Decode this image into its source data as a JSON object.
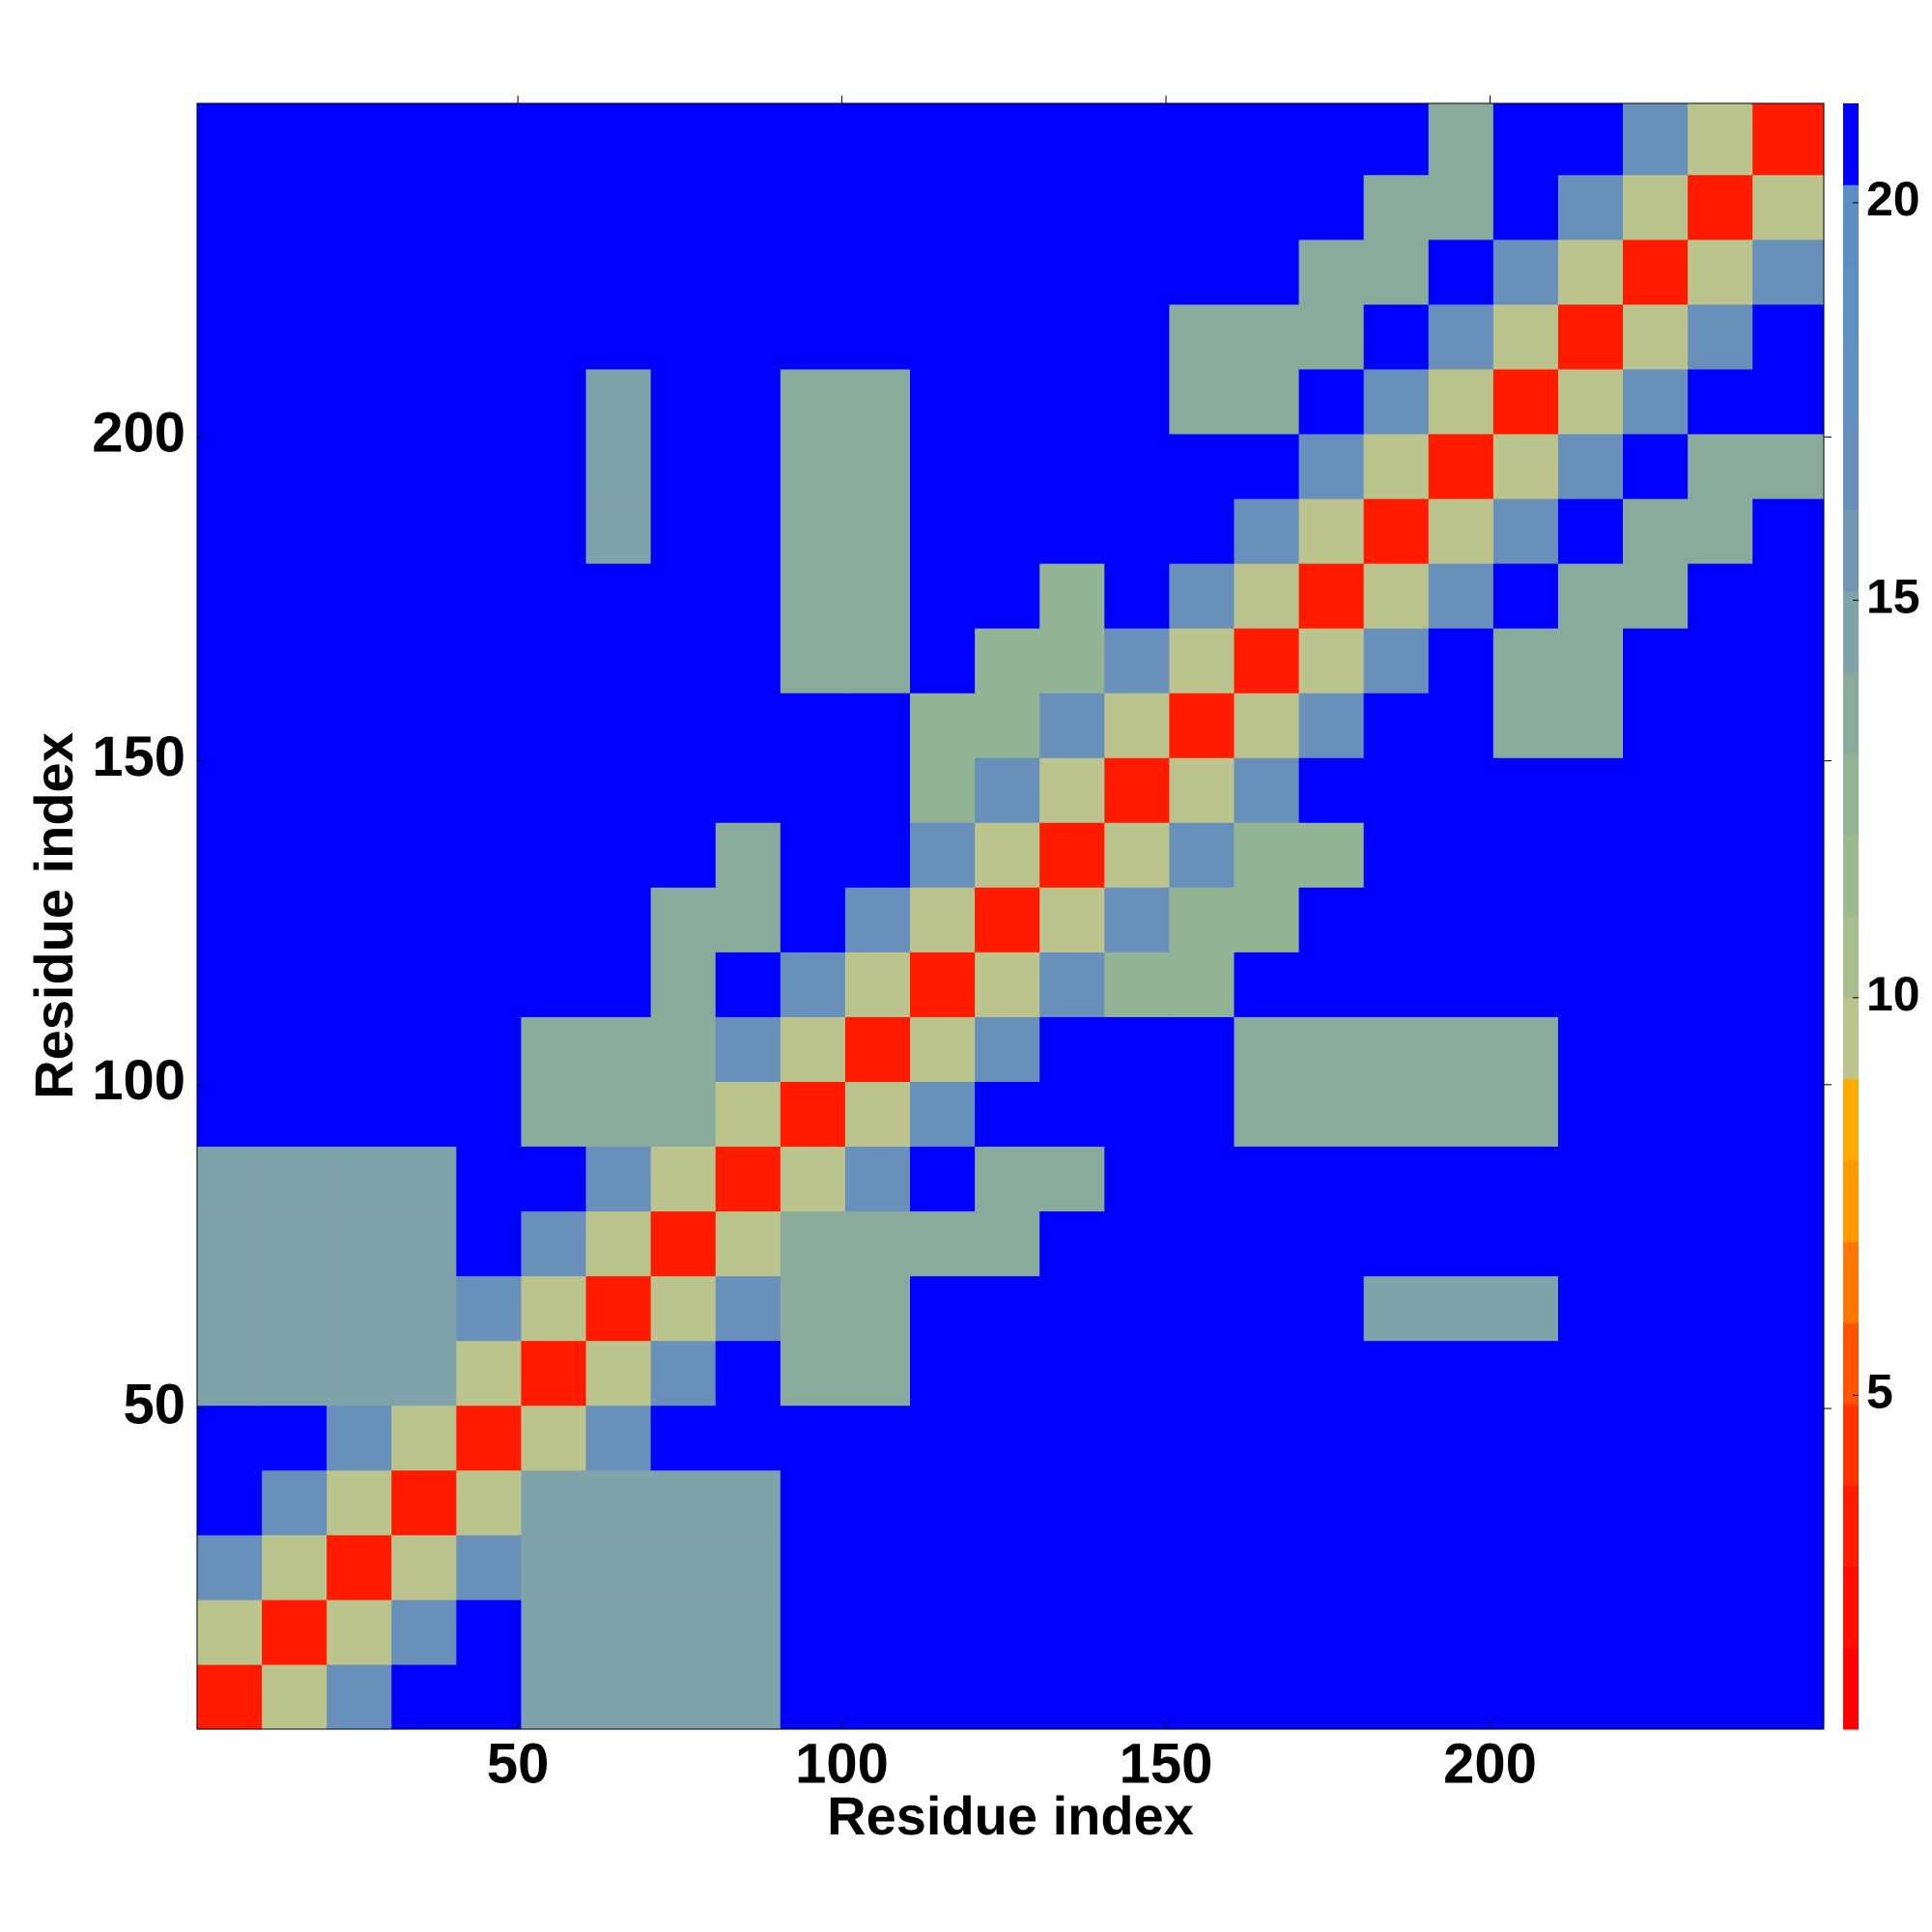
{
  "chart_data": {
    "type": "heatmap",
    "xlabel": "Residue index",
    "ylabel": "Residue index",
    "xlim": [
      0.5,
      251.5
    ],
    "ylim": [
      0.5,
      251.5
    ],
    "xticks": [
      50,
      100,
      150,
      200
    ],
    "yticks": [
      50,
      100,
      150,
      200
    ],
    "x_edges": [
      0.5,
      10.5,
      20.5,
      30.5,
      40.5,
      50.5,
      60.5,
      70.5,
      80.5,
      90.5,
      100.5,
      110.5,
      120.5,
      130.5,
      140.5,
      150.5,
      160.5,
      170.5,
      180.5,
      190.5,
      200.5,
      210.5,
      220.5,
      230.5,
      240.5,
      251.5
    ],
    "y_edges": [
      0.5,
      10.5,
      20.5,
      30.5,
      40.5,
      50.5,
      60.5,
      70.5,
      80.5,
      90.5,
      100.5,
      110.5,
      120.5,
      130.5,
      140.5,
      150.5,
      160.5,
      170.5,
      180.5,
      190.5,
      200.5,
      210.5,
      220.5,
      230.5,
      240.5,
      251.5
    ],
    "z": [
      [
        3,
        9,
        17,
        22,
        22,
        15,
        15,
        15,
        15,
        22,
        22,
        22,
        22,
        22,
        22,
        22,
        22,
        22,
        22,
        22,
        22,
        22,
        22,
        22,
        22
      ],
      [
        9,
        3,
        9,
        17,
        22,
        15,
        15,
        15,
        15,
        22,
        22,
        22,
        22,
        22,
        22,
        22,
        22,
        22,
        22,
        22,
        22,
        22,
        22,
        22,
        22
      ],
      [
        17,
        9,
        3,
        9,
        17,
        15,
        15,
        15,
        15,
        22,
        22,
        22,
        22,
        22,
        22,
        22,
        22,
        22,
        22,
        22,
        22,
        22,
        22,
        22,
        22
      ],
      [
        22,
        17,
        9,
        3,
        9,
        15,
        15,
        15,
        15,
        22,
        22,
        22,
        22,
        22,
        22,
        22,
        22,
        22,
        22,
        22,
        22,
        22,
        22,
        22,
        22
      ],
      [
        22,
        22,
        17,
        9,
        3,
        9,
        17,
        22,
        22,
        22,
        22,
        22,
        22,
        22,
        22,
        22,
        22,
        22,
        22,
        22,
        22,
        22,
        22,
        22,
        22
      ],
      [
        15,
        15,
        15,
        15,
        9,
        3,
        9,
        17,
        22,
        14,
        14,
        22,
        22,
        22,
        22,
        22,
        22,
        22,
        22,
        22,
        22,
        22,
        22,
        22,
        22
      ],
      [
        15,
        15,
        15,
        15,
        17,
        9,
        3,
        9,
        17,
        14,
        14,
        22,
        22,
        22,
        22,
        22,
        22,
        22,
        15,
        15,
        15,
        22,
        22,
        22,
        22
      ],
      [
        15,
        15,
        15,
        15,
        22,
        17,
        9,
        3,
        9,
        14,
        14,
        14,
        14,
        22,
        22,
        22,
        22,
        22,
        22,
        22,
        22,
        22,
        22,
        22,
        22
      ],
      [
        15,
        15,
        15,
        15,
        22,
        22,
        17,
        9,
        3,
        9,
        17,
        22,
        14,
        14,
        22,
        22,
        22,
        22,
        22,
        22,
        22,
        22,
        22,
        22,
        22
      ],
      [
        22,
        22,
        22,
        22,
        22,
        14,
        14,
        14,
        9,
        3,
        9,
        17,
        22,
        22,
        22,
        22,
        14,
        14,
        14,
        14,
        14,
        22,
        22,
        22,
        22
      ],
      [
        22,
        22,
        22,
        22,
        22,
        14,
        14,
        14,
        17,
        9,
        3,
        9,
        17,
        22,
        22,
        22,
        14,
        14,
        14,
        14,
        14,
        22,
        22,
        22,
        22
      ],
      [
        22,
        22,
        22,
        22,
        22,
        22,
        22,
        14,
        22,
        17,
        9,
        3,
        9,
        17,
        13,
        13,
        22,
        22,
        22,
        22,
        22,
        22,
        22,
        22,
        22
      ],
      [
        22,
        22,
        22,
        22,
        22,
        22,
        22,
        14,
        14,
        22,
        17,
        9,
        3,
        9,
        17,
        13,
        13,
        22,
        22,
        22,
        22,
        22,
        22,
        22,
        22
      ],
      [
        22,
        22,
        22,
        22,
        22,
        22,
        22,
        22,
        14,
        22,
        22,
        17,
        9,
        3,
        9,
        17,
        13,
        13,
        22,
        22,
        22,
        22,
        22,
        22,
        22
      ],
      [
        22,
        22,
        22,
        22,
        22,
        22,
        22,
        22,
        22,
        22,
        22,
        13,
        17,
        9,
        3,
        9,
        17,
        22,
        22,
        22,
        22,
        22,
        22,
        22,
        22
      ],
      [
        22,
        22,
        22,
        22,
        22,
        22,
        22,
        22,
        22,
        22,
        22,
        13,
        13,
        17,
        9,
        3,
        9,
        17,
        22,
        22,
        14,
        14,
        22,
        22,
        22
      ],
      [
        22,
        22,
        22,
        22,
        22,
        22,
        22,
        22,
        22,
        14,
        14,
        22,
        13,
        13,
        17,
        9,
        3,
        9,
        17,
        22,
        14,
        14,
        22,
        22,
        22
      ],
      [
        22,
        22,
        22,
        22,
        22,
        22,
        22,
        22,
        22,
        14,
        14,
        22,
        22,
        13,
        22,
        17,
        9,
        3,
        9,
        17,
        22,
        14,
        14,
        22,
        22
      ],
      [
        22,
        22,
        22,
        22,
        22,
        22,
        15,
        22,
        22,
        14,
        14,
        22,
        22,
        22,
        22,
        22,
        17,
        9,
        3,
        9,
        17,
        22,
        14,
        14,
        22
      ],
      [
        22,
        22,
        22,
        22,
        22,
        22,
        15,
        22,
        22,
        14,
        14,
        22,
        22,
        22,
        22,
        22,
        22,
        17,
        9,
        3,
        9,
        17,
        22,
        14,
        14
      ],
      [
        22,
        22,
        22,
        22,
        22,
        22,
        15,
        22,
        22,
        14,
        14,
        22,
        22,
        22,
        22,
        14,
        14,
        22,
        17,
        9,
        3,
        9,
        17,
        22,
        22
      ],
      [
        22,
        22,
        22,
        22,
        22,
        22,
        22,
        22,
        22,
        22,
        22,
        22,
        22,
        22,
        22,
        14,
        14,
        14,
        22,
        17,
        9,
        3,
        9,
        17,
        22
      ],
      [
        22,
        22,
        22,
        22,
        22,
        22,
        22,
        22,
        22,
        22,
        22,
        22,
        22,
        22,
        22,
        22,
        22,
        14,
        14,
        22,
        17,
        9,
        3,
        9,
        17
      ],
      [
        22,
        22,
        22,
        22,
        22,
        22,
        22,
        22,
        22,
        22,
        22,
        22,
        22,
        22,
        22,
        22,
        22,
        22,
        14,
        14,
        22,
        17,
        9,
        3,
        9
      ],
      [
        22,
        22,
        22,
        22,
        22,
        22,
        22,
        22,
        22,
        22,
        22,
        22,
        22,
        22,
        22,
        22,
        22,
        22,
        22,
        14,
        22,
        22,
        17,
        9,
        3
      ]
    ],
    "colorbar": {
      "lim": [
        0.8,
        21.25
      ],
      "ticks": [
        5,
        10,
        15,
        20
      ],
      "colors": [
        "#ff0000",
        "#ff0d00",
        "#ff1a00",
        "#ff3300",
        "#ff5500",
        "#ff7700",
        "#ff9900",
        "#ffaa00",
        "#bcc48e",
        "#a9bf8f",
        "#9dba8f",
        "#93b494",
        "#8aab9c",
        "#7ea3a8",
        "#7098b5",
        "#6890bb",
        "#6390c0",
        "#6090c0",
        "#5c8ec4",
        "#0000ff"
      ]
    }
  }
}
